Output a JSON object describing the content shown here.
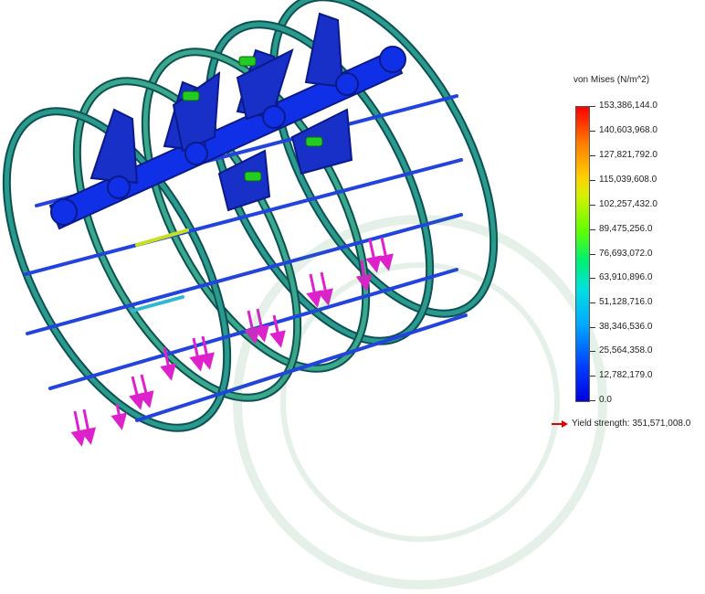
{
  "legend": {
    "title": "von Mises (N/m^2)",
    "values": [
      "153,386,144.0",
      "140,603,968.0",
      "127,821,792.0",
      "115,039,608.0",
      "102,257,432.0",
      "89,475,256.0",
      "76,693,072.0",
      "63,910,896.0",
      "51,128,716.0",
      "38,346,536.0",
      "25,564,358.0",
      "12,782,179.0",
      "0.0"
    ],
    "yield_label": "Yield strength: 351,571,008.0",
    "yield_arrow_color": "#e00000"
  },
  "colors": {
    "ring": "#1f8a84",
    "ring_edge": "#0d4f55",
    "rod": "#2244dd",
    "shaft": "#1030e8",
    "bracket": "#1830c8",
    "bolt": "#22cc22",
    "load_arrow": "#dd22cc"
  },
  "icons": [
    "yield-arrow-icon",
    "load-arrow-icon",
    "bolt-icon"
  ]
}
